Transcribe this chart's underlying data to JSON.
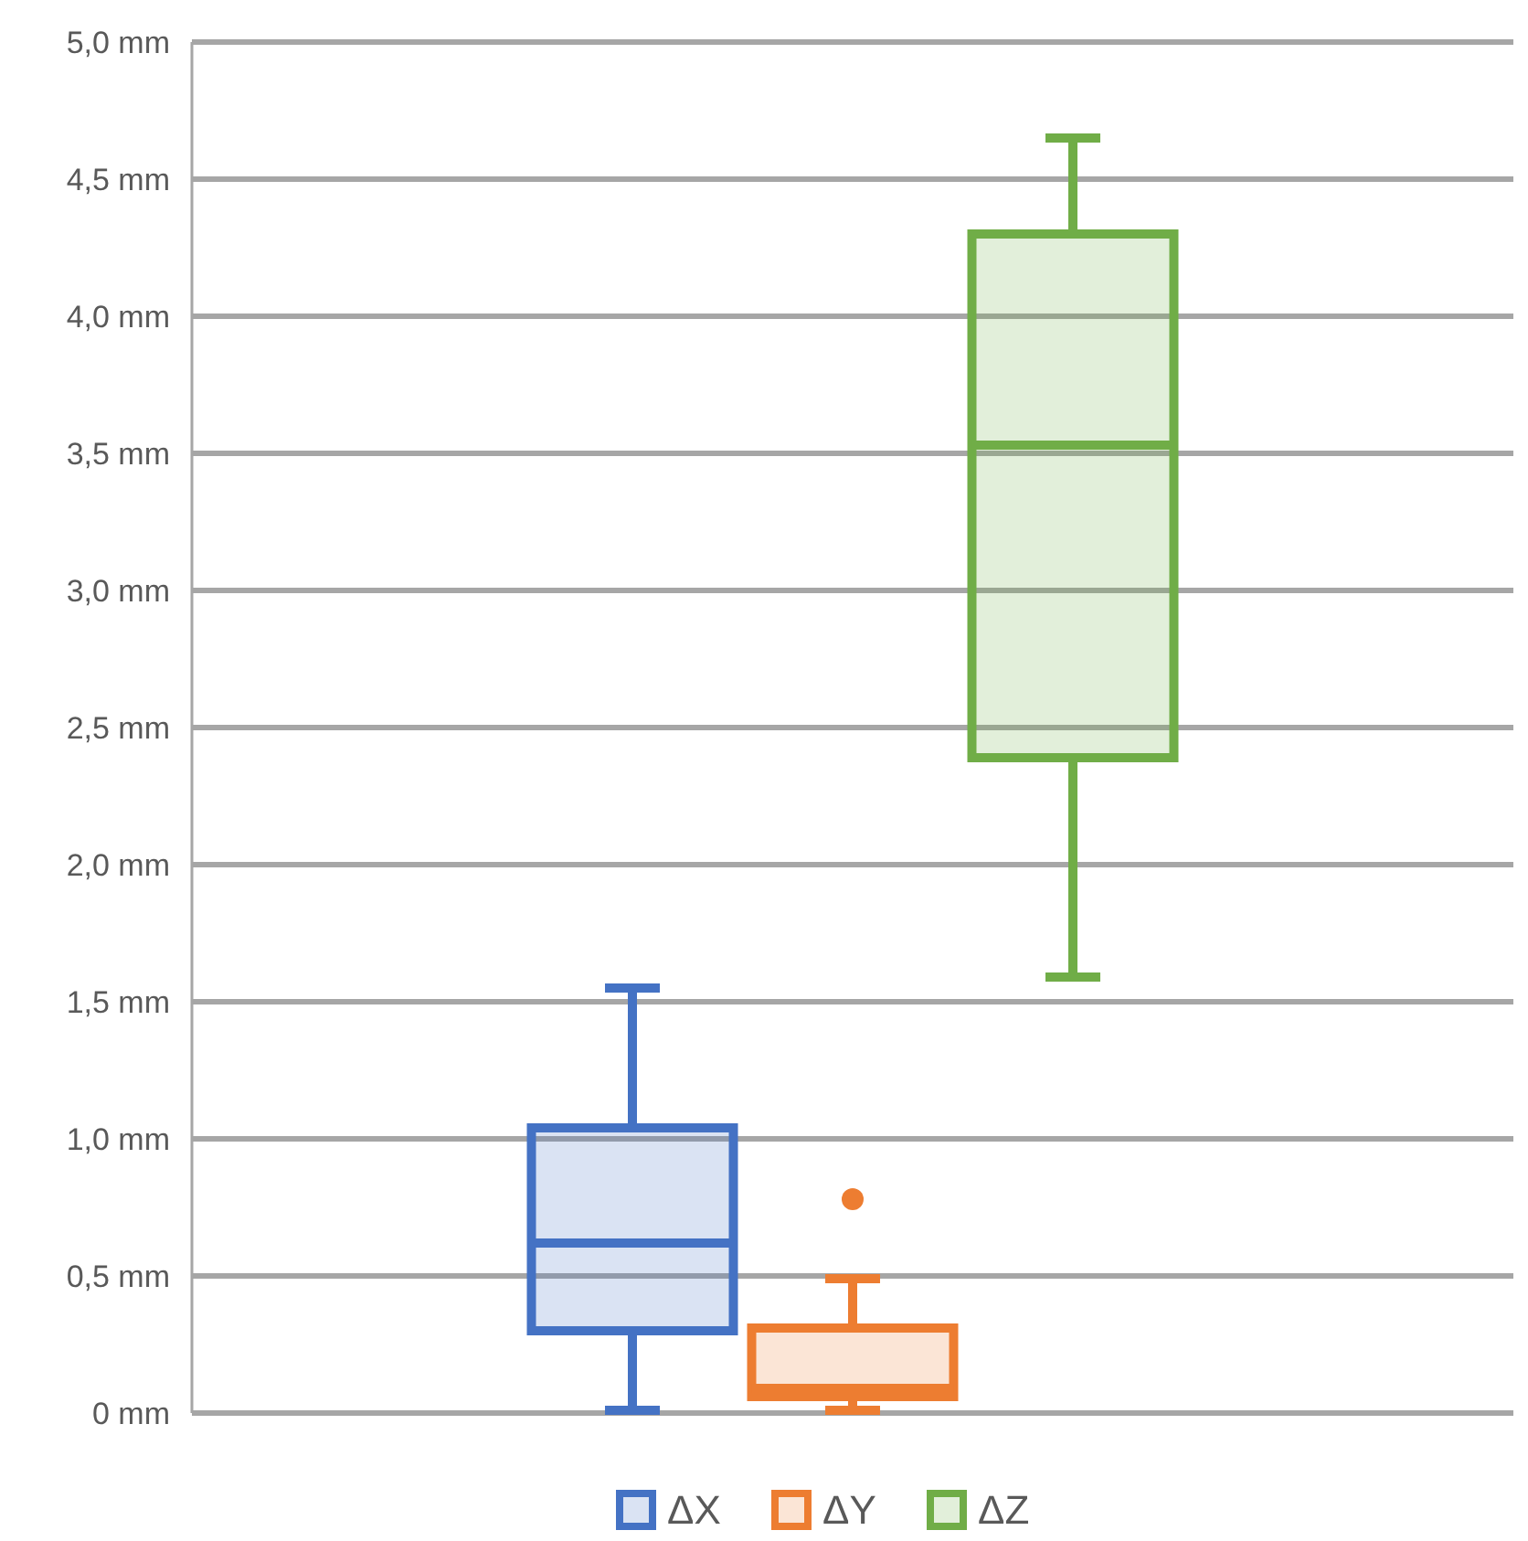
{
  "chart_data": {
    "type": "box",
    "categories": [
      null
    ],
    "series": [
      {
        "name": "ΔX",
        "color": "#4472c4",
        "boxes": [
          {
            "low": 0.01,
            "q1": 0.3,
            "median": 0.62,
            "q3": 1.04,
            "high": 1.55
          }
        ]
      },
      {
        "name": "ΔY",
        "color": "#ed7d31",
        "boxes": [
          {
            "low": 0.01,
            "q1": 0.06,
            "median": 0.09,
            "q3": 0.31,
            "high": 0.49,
            "outliers": [
              0.78
            ]
          }
        ]
      },
      {
        "name": "ΔZ",
        "color": "#70ad47",
        "boxes": [
          {
            "low": 1.59,
            "q1": 2.39,
            "median": 3.53,
            "q3": 4.3,
            "high": 4.65
          }
        ]
      }
    ],
    "ylim": [
      0,
      5
    ],
    "yticks": [
      {
        "value": 0,
        "label": "0 mm"
      },
      {
        "value": 0.5,
        "label": "0,5 mm"
      },
      {
        "value": 1,
        "label": "1,0 mm"
      },
      {
        "value": 1.5,
        "label": "1,5 mm"
      },
      {
        "value": 2,
        "label": "2,0 mm"
      },
      {
        "value": 2.5,
        "label": "2,5 mm"
      },
      {
        "value": 3,
        "label": "3,0 mm"
      },
      {
        "value": 3.5,
        "label": "3,5 mm"
      },
      {
        "value": 4,
        "label": "4,0 mm"
      },
      {
        "value": 4.5,
        "label": "4,5 mm"
      },
      {
        "value": 5,
        "label": "5,0 mm"
      }
    ],
    "grid": "y",
    "legend": "bottom"
  }
}
